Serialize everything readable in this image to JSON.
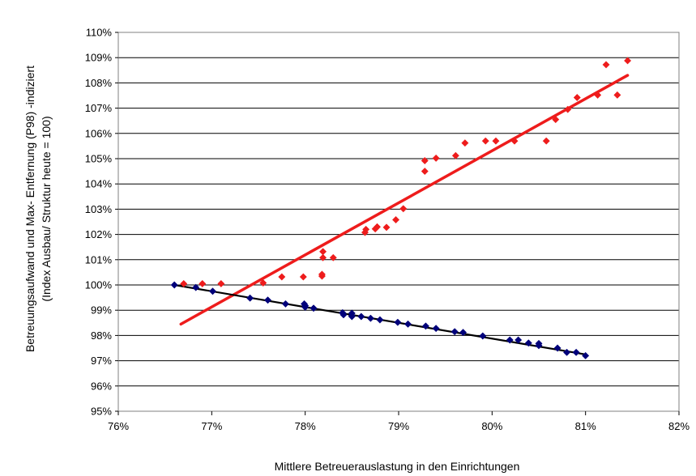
{
  "chart_data": {
    "type": "scatter",
    "xlabel": "Mittlere Betreuerauslastung in den Einrichtungen",
    "ylabel_line1": "Betreuungsaufwand und  Max- Entfernung (P98) -indiziert",
    "ylabel_line2": "(Index  Ausbau/ Struktur heute = 100)",
    "xlim": [
      0.76,
      0.82
    ],
    "ylim": [
      0.95,
      1.1
    ],
    "x_ticks": [
      0.76,
      0.77,
      0.78,
      0.79,
      0.8,
      0.81,
      0.82
    ],
    "x_tick_labels": [
      "76%",
      "77%",
      "78%",
      "79%",
      "80%",
      "81%",
      "82%"
    ],
    "y_ticks": [
      0.95,
      0.96,
      0.97,
      0.98,
      0.99,
      1.0,
      1.01,
      1.02,
      1.03,
      1.04,
      1.05,
      1.06,
      1.07,
      1.08,
      1.09,
      1.1
    ],
    "y_tick_labels": [
      "95%",
      "96%",
      "97%",
      "98%",
      "99%",
      "100%",
      "101%",
      "102%",
      "103%",
      "104%",
      "105%",
      "106%",
      "107%",
      "108%",
      "109%",
      "110%"
    ],
    "grid": "horizontal",
    "legend": "none",
    "series": [
      {
        "color": "#ee1c1c",
        "marker": "diamond",
        "points": [
          [
            0.767,
            1.0005
          ],
          [
            0.769,
            1.0005
          ],
          [
            0.771,
            1.0005
          ],
          [
            0.7755,
            1.0008
          ],
          [
            0.7775,
            1.0032
          ],
          [
            0.7798,
            1.0032
          ],
          [
            0.7818,
            1.0035
          ],
          [
            0.7818,
            1.0042
          ],
          [
            0.7819,
            1.0108
          ],
          [
            0.7819,
            1.0132
          ],
          [
            0.783,
            1.0108
          ],
          [
            0.7864,
            1.0208
          ],
          [
            0.7865,
            1.022
          ],
          [
            0.7875,
            1.0222
          ],
          [
            0.7877,
            1.023
          ],
          [
            0.7887,
            1.0228
          ],
          [
            0.7897,
            1.0258
          ],
          [
            0.7905,
            1.0302
          ],
          [
            0.7928,
            1.045
          ],
          [
            0.7928,
            1.0492
          ],
          [
            0.794,
            1.0502
          ],
          [
            0.7961,
            1.0512
          ],
          [
            0.7971,
            1.0562
          ],
          [
            0.7993,
            1.057
          ],
          [
            0.8004,
            1.057
          ],
          [
            0.8024,
            1.057
          ],
          [
            0.8058,
            1.057
          ],
          [
            0.8068,
            1.0655
          ],
          [
            0.8081,
            1.0695
          ],
          [
            0.8091,
            1.0742
          ],
          [
            0.8113,
            1.0752
          ],
          [
            0.8122,
            1.0872
          ],
          [
            0.8134,
            1.0752
          ],
          [
            0.8145,
            1.0888
          ]
        ],
        "trend": [
          [
            0.7667,
            0.9845
          ],
          [
            0.8145,
            1.083
          ]
        ]
      },
      {
        "color": "#00007a",
        "marker": "diamond",
        "points": [
          [
            0.766,
            1.0
          ],
          [
            0.7683,
            0.999
          ],
          [
            0.7701,
            0.9975
          ],
          [
            0.7741,
            0.9948
          ],
          [
            0.776,
            0.994
          ],
          [
            0.7779,
            0.9925
          ],
          [
            0.7799,
            0.9925
          ],
          [
            0.78,
            0.9918
          ],
          [
            0.78,
            0.9912
          ],
          [
            0.7809,
            0.9908
          ],
          [
            0.784,
            0.989
          ],
          [
            0.7841,
            0.9882
          ],
          [
            0.785,
            0.9888
          ],
          [
            0.785,
            0.9878
          ],
          [
            0.785,
            0.9875
          ],
          [
            0.786,
            0.9875
          ],
          [
            0.787,
            0.9868
          ],
          [
            0.788,
            0.9862
          ],
          [
            0.7899,
            0.9852
          ],
          [
            0.791,
            0.9845
          ],
          [
            0.7929,
            0.9837
          ],
          [
            0.794,
            0.9828
          ],
          [
            0.796,
            0.9815
          ],
          [
            0.7969,
            0.9812
          ],
          [
            0.799,
            0.9798
          ],
          [
            0.8019,
            0.9782
          ],
          [
            0.8028,
            0.9782
          ],
          [
            0.8039,
            0.977
          ],
          [
            0.805,
            0.9768
          ],
          [
            0.805,
            0.976
          ],
          [
            0.807,
            0.975
          ],
          [
            0.808,
            0.9733
          ],
          [
            0.809,
            0.9733
          ],
          [
            0.81,
            0.972
          ]
        ],
        "trend": [
          [
            0.766,
            1.0
          ],
          [
            0.81,
            0.9725
          ]
        ]
      }
    ]
  }
}
